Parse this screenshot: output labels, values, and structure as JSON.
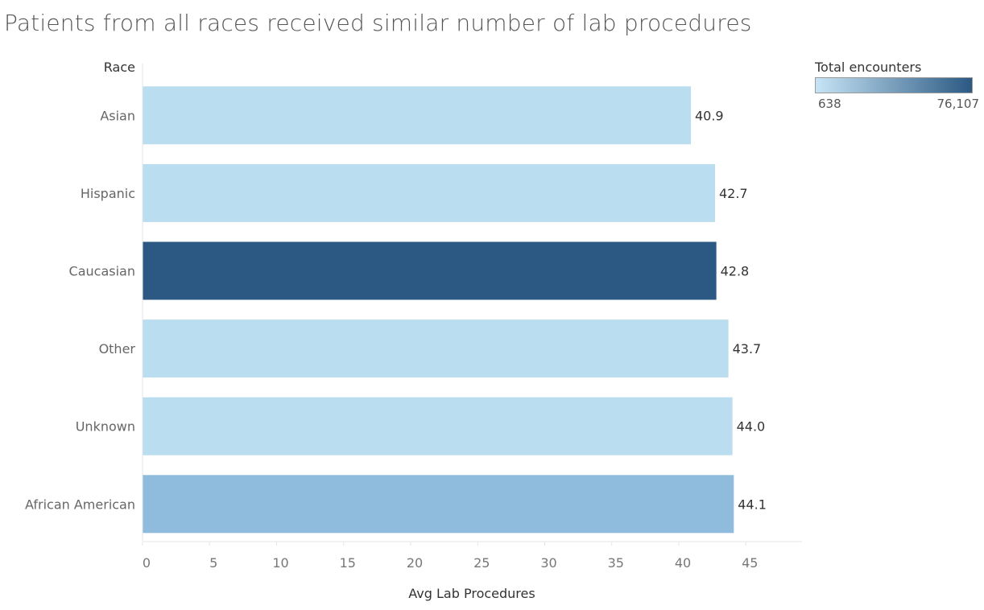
{
  "chart_data": {
    "type": "bar",
    "orientation": "horizontal",
    "title": "Patients from all races received similar number of lab procedures",
    "ylabel": "Race",
    "xlabel": "Avg Lab Procedures",
    "xlim": [
      0,
      49
    ],
    "xticks": [
      0,
      5,
      10,
      15,
      20,
      25,
      30,
      35,
      40,
      45
    ],
    "categories": [
      "Asian",
      "Hispanic",
      "Caucasian",
      "Other",
      "Unknown",
      "African American"
    ],
    "values": [
      40.9,
      42.7,
      42.8,
      43.7,
      44.0,
      44.1
    ],
    "data_labels": [
      "40.9",
      "42.7",
      "42.8",
      "43.7",
      "44.0",
      "44.1"
    ],
    "bar_colors": [
      "#bbddf0",
      "#bbddf0",
      "#2b5983",
      "#bbddf0",
      "#bbddf0",
      "#8fbcdc"
    ],
    "grid": false,
    "legend": {
      "title": "Total encounters",
      "placement": "top-right",
      "min_label": "638",
      "max_label": "76,107",
      "min_value": 638,
      "max_value": 76107,
      "color_low": "#c6e4f5",
      "color_high": "#2b5983"
    }
  }
}
